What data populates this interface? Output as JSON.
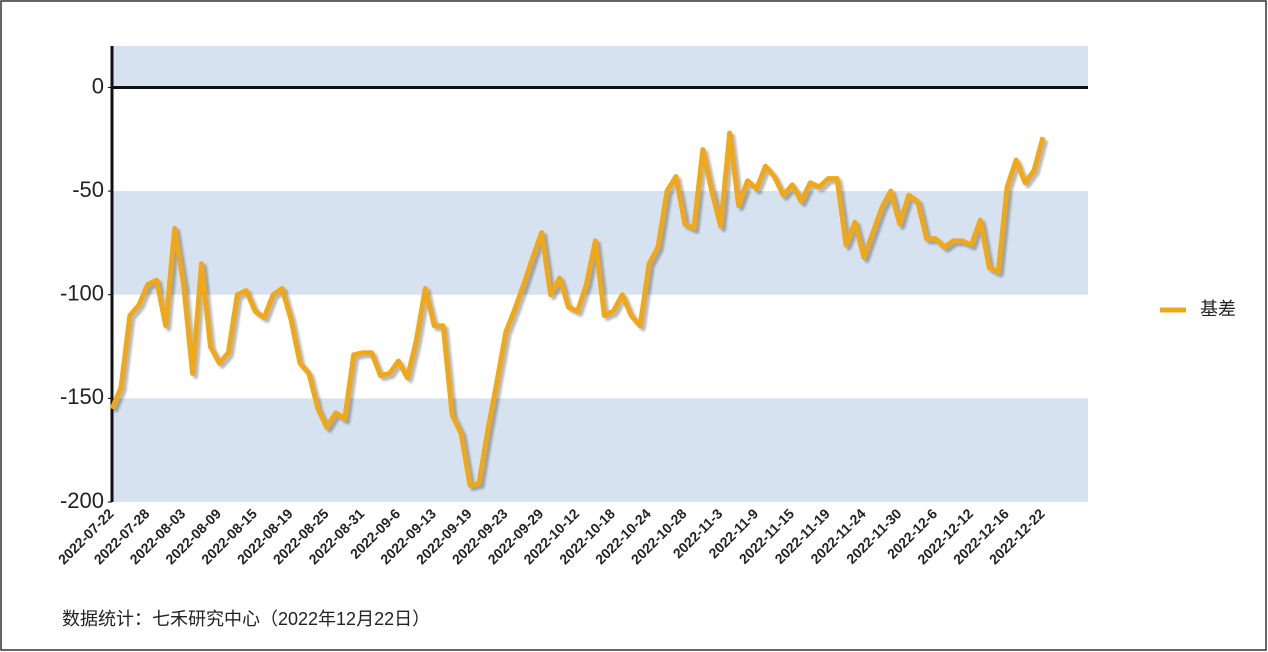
{
  "chart_data": {
    "type": "line",
    "categories": [
      "2022-07-22",
      null,
      null,
      null,
      "2022-07-28",
      null,
      null,
      null,
      "2022-08-03",
      null,
      null,
      null,
      "2022-08-09",
      null,
      null,
      null,
      "2022-08-15",
      null,
      null,
      null,
      "2022-08-19",
      null,
      null,
      null,
      "2022-08-25",
      null,
      null,
      null,
      "2022-08-31",
      null,
      null,
      null,
      "2022-09-6",
      null,
      null,
      null,
      "2022-09-13",
      null,
      null,
      null,
      "2022-09-19",
      null,
      null,
      null,
      "2022-09-23",
      null,
      null,
      null,
      "2022-09-29",
      null,
      null,
      null,
      "2022-10-12",
      null,
      null,
      null,
      "2022-10-18",
      null,
      null,
      null,
      "2022-10-24",
      null,
      null,
      null,
      "2022-10-28",
      null,
      null,
      null,
      "2022-11-3",
      null,
      null,
      null,
      "2022-11-9",
      null,
      null,
      null,
      "2022-11-15",
      null,
      null,
      null,
      "2022-11-19",
      null,
      null,
      null,
      "2022-11-24",
      null,
      null,
      null,
      "2022-11-30",
      null,
      null,
      null,
      "2022-12-6",
      null,
      null,
      null,
      "2022-12-12",
      null,
      null,
      null,
      "2022-12-16",
      null,
      null,
      null,
      "2022-12-22"
    ],
    "series": [
      {
        "name": "基差",
        "color": "#f0a818",
        "values": [
          -155,
          -145,
          -110,
          -105,
          -95,
          -93,
          -115,
          -68,
          -95,
          -138,
          -85,
          -125,
          -133,
          -128,
          -100,
          -98,
          -108,
          -111,
          -100,
          -97,
          -112,
          -133,
          -138,
          -155,
          -164,
          -157,
          -160,
          -129,
          -128,
          -128,
          -139,
          -138,
          -132,
          -140,
          -122,
          -97,
          -115,
          -115,
          -158,
          -167,
          -192,
          -191,
          -165,
          -142,
          -118,
          -107,
          -95,
          -82,
          -70,
          -100,
          -92,
          -106,
          -108,
          -95,
          -74,
          -110,
          -108,
          -100,
          -110,
          -115,
          -85,
          -77,
          -50,
          -43,
          -66,
          -68,
          -30,
          -50,
          -67,
          -22,
          -57,
          -45,
          -49,
          -38,
          -43,
          -52,
          -47,
          -55,
          -46,
          -48,
          -44,
          -44,
          -76,
          -65,
          -82,
          -70,
          -58,
          -50,
          -66,
          -52,
          -55,
          -73,
          -73,
          -77,
          -74,
          -74,
          -76,
          -64,
          -87,
          -89,
          -48,
          -35,
          -46,
          -40,
          -24
        ]
      }
    ],
    "ylim": [
      -200,
      20
    ],
    "yticks": [
      0,
      -50,
      -100,
      -150,
      -200
    ],
    "band_color": "#d6e2ef",
    "zero_line": true,
    "legend": "right",
    "source": "数据统计：七禾研究中心（2022年12月22日）"
  }
}
